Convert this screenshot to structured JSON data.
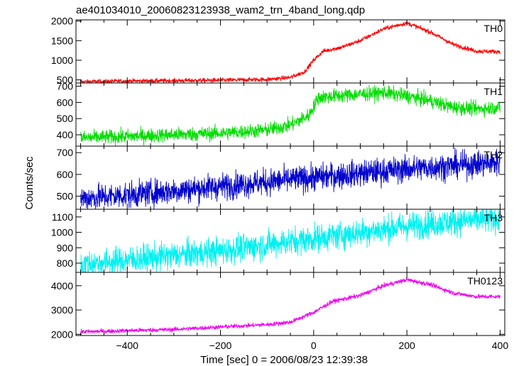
{
  "chart_data": {
    "type": "line",
    "title": "ae401034010_20060823123938_wam2_trn_4band_long.qdp",
    "xlabel": "Time [sec] 0 = 2006/08/23 12:39:38",
    "ylabel": "Counts/sec",
    "xlim": [
      -510,
      410
    ],
    "x_ticks": [
      -400,
      -200,
      0,
      200,
      400
    ],
    "grid": false,
    "panels": [
      {
        "name": "TH0",
        "color": "#ff0000",
        "ylim": [
          420,
          2030
        ],
        "y_ticks": [
          500,
          1000,
          1500,
          2000
        ],
        "noise": 28,
        "x": [
          -500,
          -450,
          -400,
          -300,
          -200,
          -100,
          -50,
          -20,
          0,
          20,
          60,
          100,
          150,
          200,
          250,
          300,
          350,
          400
        ],
        "values": [
          450,
          460,
          470,
          480,
          490,
          510,
          560,
          700,
          1000,
          1230,
          1330,
          1500,
          1800,
          1950,
          1720,
          1400,
          1230,
          1220
        ]
      },
      {
        "name": "TH1",
        "color": "#00dd00",
        "ylim": [
          330,
          720
        ],
        "y_ticks": [
          400,
          500,
          600,
          700
        ],
        "noise": 22,
        "x": [
          -500,
          -400,
          -300,
          -200,
          -100,
          -50,
          -10,
          10,
          50,
          100,
          150,
          200,
          250,
          300,
          350,
          400
        ],
        "values": [
          380,
          390,
          400,
          410,
          430,
          460,
          520,
          630,
          640,
          650,
          660,
          640,
          610,
          570,
          560,
          570
        ]
      },
      {
        "name": "TH2",
        "color": "#0000cc",
        "ylim": [
          440,
          730
        ],
        "y_ticks": [
          500,
          600,
          700
        ],
        "noise": 30,
        "x": [
          -500,
          -400,
          -300,
          -200,
          -100,
          0,
          100,
          200,
          300,
          400
        ],
        "values": [
          490,
          505,
          525,
          545,
          565,
          585,
          605,
          625,
          640,
          655
        ]
      },
      {
        "name": "TH3",
        "color": "#00f0f0",
        "ylim": [
          740,
          1150
        ],
        "y_ticks": [
          800,
          900,
          1000,
          1100
        ],
        "noise": 45,
        "x": [
          -500,
          -400,
          -300,
          -200,
          -100,
          0,
          100,
          200,
          300,
          400
        ],
        "values": [
          790,
          820,
          850,
          880,
          920,
          960,
          1000,
          1040,
          1070,
          1090
        ]
      },
      {
        "name": "TH0123",
        "color": "#ee00ee",
        "ylim": [
          1950,
          4550
        ],
        "y_ticks": [
          2000,
          3000,
          4000
        ],
        "noise": 45,
        "x": [
          -500,
          -400,
          -300,
          -200,
          -100,
          -50,
          0,
          40,
          100,
          150,
          200,
          250,
          300,
          350,
          400
        ],
        "values": [
          2100,
          2150,
          2200,
          2300,
          2400,
          2500,
          2900,
          3350,
          3600,
          4000,
          4250,
          4050,
          3700,
          3550,
          3550
        ]
      }
    ]
  }
}
